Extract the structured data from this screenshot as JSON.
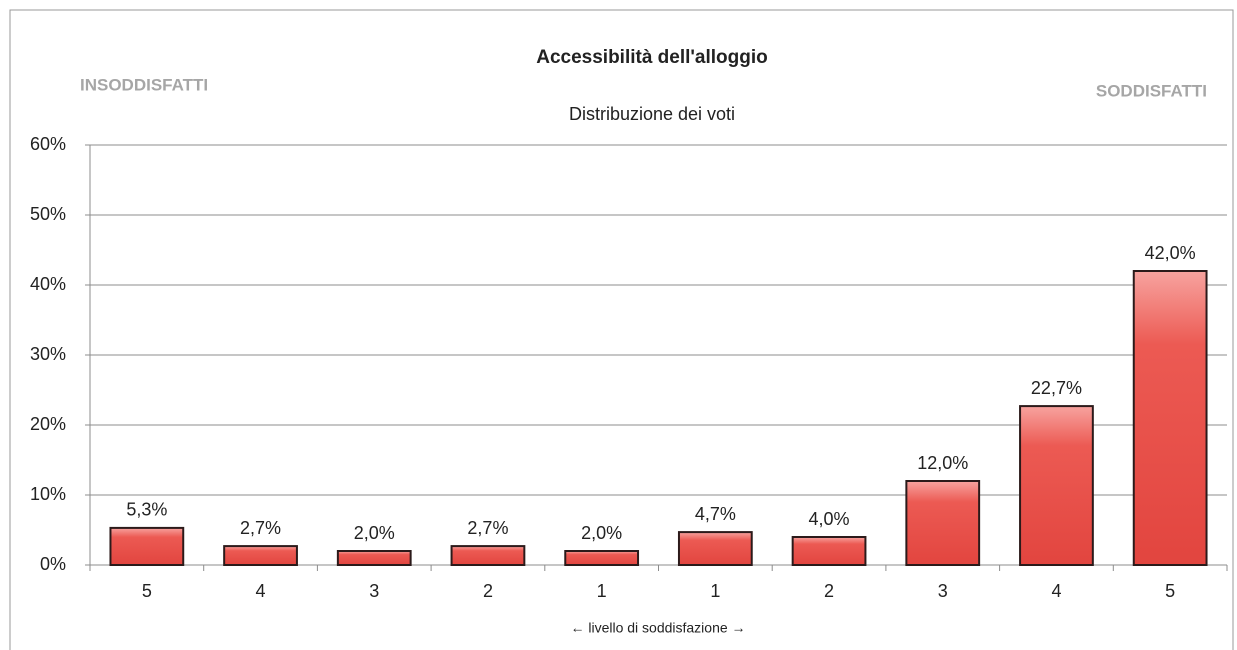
{
  "chart_data": {
    "type": "bar",
    "title": "Accessibilità dell'alloggio",
    "subtitle": "Distribuzione dei voti",
    "annotations": [
      "INSODDISFATTI",
      "SODDISFATTI"
    ],
    "xlabel": "← livello di soddisfazione →",
    "categories": [
      "5",
      "4",
      "3",
      "2",
      "1",
      "1",
      "2",
      "3",
      "4",
      "5"
    ],
    "values": [
      5.3,
      2.7,
      2.0,
      2.7,
      2.0,
      4.7,
      4.0,
      12.0,
      22.7,
      42.0
    ],
    "value_labels": [
      "5,3%",
      "2,7%",
      "2,0%",
      "2,7%",
      "2,0%",
      "4,7%",
      "4,0%",
      "12,0%",
      "22,7%",
      "42,0%"
    ],
    "color": "#e8504a",
    "ylim": [
      0,
      60
    ],
    "yticks": [
      {
        "value": 0,
        "label": "0%"
      },
      {
        "value": 10,
        "label": "10%"
      },
      {
        "value": 20,
        "label": "20%"
      },
      {
        "value": 30,
        "label": "30%"
      },
      {
        "value": 40,
        "label": "40%"
      },
      {
        "value": 50,
        "label": "50%"
      },
      {
        "value": 60,
        "label": "60%"
      }
    ],
    "grid": true
  }
}
